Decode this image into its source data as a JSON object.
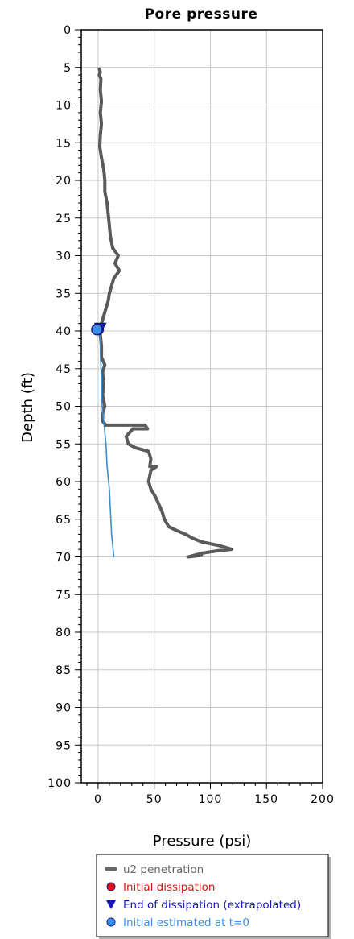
{
  "chart_data": {
    "type": "line",
    "title": "Pore pressure",
    "xlabel": "Pressure (psi)",
    "ylabel": "Depth (ft)",
    "xlim": [
      -15,
      200
    ],
    "ylim": [
      0,
      100
    ],
    "y_inverted": true,
    "grid": true,
    "legend_position": "bottom",
    "xticks": [
      0,
      50,
      100,
      150,
      200
    ],
    "xtick_labels": [
      "0",
      "50",
      "100",
      "150",
      "200"
    ],
    "yticks": [
      0,
      5,
      10,
      15,
      20,
      25,
      30,
      35,
      40,
      45,
      50,
      55,
      60,
      65,
      70,
      75,
      80,
      85,
      90,
      95,
      100
    ],
    "ytick_labels": [
      "0",
      "5",
      "10",
      "15",
      "20",
      "25",
      "30",
      "35",
      "40",
      "45",
      "50",
      "55",
      "60",
      "65",
      "70",
      "75",
      "80",
      "85",
      "90",
      "95",
      "100"
    ],
    "series": [
      {
        "name": "u2 penetration",
        "color": "#5a5a5a",
        "marker": "line",
        "points": [
          [
            1,
            5.2
          ],
          [
            2,
            5.6
          ],
          [
            1,
            6
          ],
          [
            2.5,
            6.5
          ],
          [
            2,
            8
          ],
          [
            3,
            9.5
          ],
          [
            2,
            11
          ],
          [
            3,
            12.5
          ],
          [
            2,
            14
          ],
          [
            1.5,
            15.5
          ],
          [
            3,
            17
          ],
          [
            5,
            18.5
          ],
          [
            6,
            20
          ],
          [
            6,
            21.5
          ],
          [
            8,
            23
          ],
          [
            9,
            24.5
          ],
          [
            10,
            26
          ],
          [
            11,
            27.5
          ],
          [
            13,
            29
          ],
          [
            18,
            30
          ],
          [
            15,
            31
          ],
          [
            19,
            32
          ],
          [
            14,
            33
          ],
          [
            12,
            34
          ],
          [
            10,
            35
          ],
          [
            9,
            36
          ],
          [
            7,
            37
          ],
          [
            5,
            38
          ],
          [
            3,
            39
          ],
          [
            1,
            39.7
          ],
          [
            2,
            40.5
          ],
          [
            3,
            42
          ],
          [
            3,
            43.5
          ],
          [
            6,
            44.5
          ],
          [
            4,
            45.5
          ],
          [
            5,
            47
          ],
          [
            4,
            48.5
          ],
          [
            6,
            50
          ],
          [
            4,
            51
          ],
          [
            4,
            52
          ],
          [
            7,
            52.5
          ],
          [
            42,
            52.5
          ],
          [
            44,
            53
          ],
          [
            31,
            53
          ],
          [
            25,
            54
          ],
          [
            27,
            55
          ],
          [
            33,
            55.5
          ],
          [
            45,
            56
          ],
          [
            47,
            57
          ],
          [
            46,
            58
          ],
          [
            52,
            58
          ],
          [
            47,
            58.5
          ],
          [
            45,
            60
          ],
          [
            47,
            61
          ],
          [
            51,
            62
          ],
          [
            54,
            63
          ],
          [
            57,
            64
          ],
          [
            59,
            65
          ],
          [
            63,
            66
          ],
          [
            70,
            66.5
          ],
          [
            78,
            67
          ],
          [
            84,
            67.5
          ],
          [
            92,
            68
          ],
          [
            108,
            68.5
          ],
          [
            119,
            69
          ],
          [
            106,
            69.2
          ],
          [
            93,
            69.5
          ],
          [
            80,
            70
          ],
          [
            92,
            69.8
          ]
        ]
      },
      {
        "name": "",
        "color": "#3e8ad0",
        "marker": "line",
        "points": [
          [
            0,
            39.8
          ],
          [
            2,
            41
          ],
          [
            2,
            43
          ],
          [
            3,
            46
          ],
          [
            3,
            49
          ],
          [
            5,
            52
          ],
          [
            7,
            55
          ],
          [
            8,
            58
          ],
          [
            10,
            61
          ],
          [
            11,
            64
          ],
          [
            12,
            67
          ],
          [
            14,
            70
          ]
        ]
      },
      {
        "name": "Initial dissipation",
        "color": "#e01010",
        "marker": "circle",
        "points": [
          [
            0,
            39.8
          ]
        ]
      },
      {
        "name": "End of dissipation (extrapolated)",
        "color": "#1616b8",
        "marker": "triangle-down",
        "points": [
          [
            2,
            39.6
          ]
        ]
      },
      {
        "name": "Initial estimated at t=0",
        "color": "#3a8fe8",
        "marker": "circle",
        "points": [
          [
            -1,
            39.8
          ]
        ]
      }
    ],
    "legend": [
      {
        "label": "u2 penetration",
        "color": "#666666",
        "marker": "line"
      },
      {
        "label": "Initial dissipation",
        "color": "#e01010",
        "marker": "circle"
      },
      {
        "label": "End of dissipation (extrapolated)",
        "color": "#1616b8",
        "marker": "triangle-down"
      },
      {
        "label": "Initial estimated at t=0",
        "color": "#3a8fe8",
        "marker": "circle"
      }
    ]
  }
}
